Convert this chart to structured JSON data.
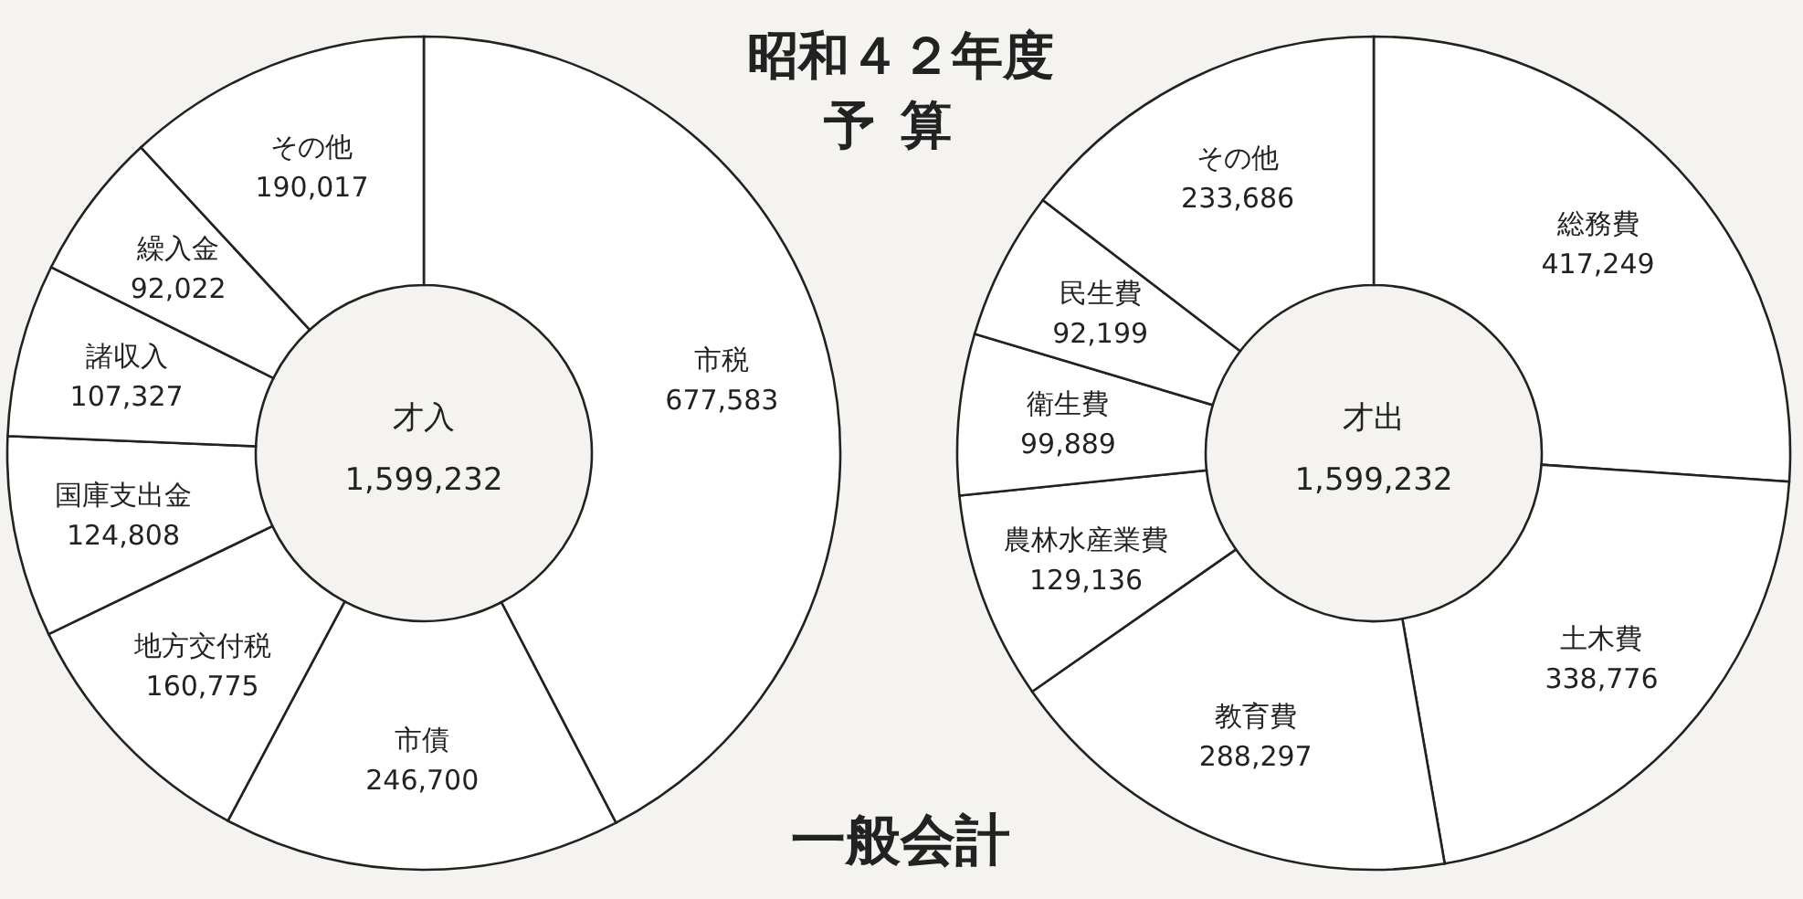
{
  "chart_data": [
    {
      "type": "donut",
      "title": "昭和４２年度",
      "subtitle": "予算",
      "categories": [
        "市税",
        "市債",
        "地方交付税",
        "国庫支出金",
        "諸収入",
        "繰入金",
        "その他"
      ],
      "values": [
        677583,
        246700,
        160775,
        124808,
        107327,
        92022,
        190017
      ],
      "value_labels": [
        "677,583",
        "246,700",
        "160,775",
        "124,808",
        "107,327",
        "92,022",
        "190,017"
      ],
      "colors": [
        "#ffffff",
        "#ffffff",
        "#ffffff",
        "#ffffff",
        "#ffffff",
        "#ffffff",
        "#ffffff"
      ],
      "annotations": [
        "才入",
        "1,599,232",
        "一般会計"
      ]
    },
    {
      "type": "donut",
      "categories": [
        "総務費",
        "土木費",
        "教育費",
        "農林水産業費",
        "衛生費",
        "民生費",
        "その他"
      ],
      "values": [
        417249,
        338776,
        288297,
        129136,
        99889,
        92199,
        233686
      ],
      "value_labels": [
        "417,249",
        "338,776",
        "288,297",
        "129,136",
        "99,889",
        "92,199",
        "233,686"
      ],
      "colors": [
        "#ffffff",
        "#ffffff",
        "#ffffff",
        "#ffffff",
        "#ffffff",
        "#ffffff",
        "#ffffff"
      ],
      "annotations": [
        "才出",
        "1,599,232"
      ]
    }
  ]
}
